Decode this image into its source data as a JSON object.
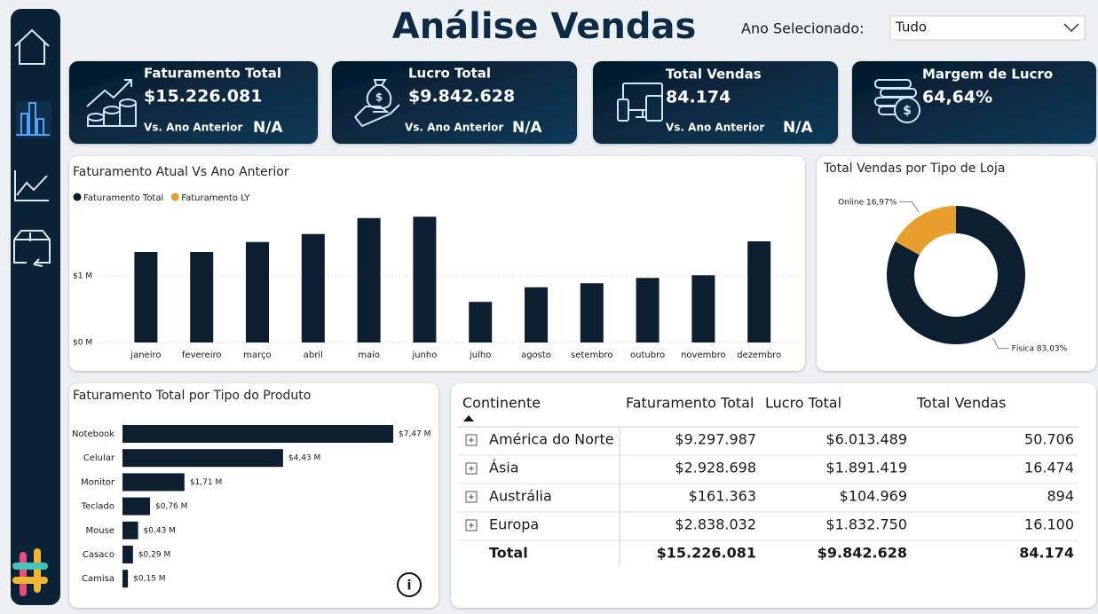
{
  "header": {
    "title": "Análise Vendas",
    "filter_label": "Ano Selecionado:",
    "filter_value": "Tudo"
  },
  "kpis": [
    {
      "title": "Faturamento Total",
      "value": "$15.226.081",
      "compare_label": "Vs. Ano Anterior",
      "compare_value": "N/A"
    },
    {
      "title": "Lucro Total",
      "value": "$9.842.628",
      "compare_label": "Vs. Ano Anterior",
      "compare_value": "N/A"
    },
    {
      "title": "Total Vendas",
      "value": "84.174",
      "compare_label": "Vs. Ano Anterior",
      "compare_value": "N/A"
    },
    {
      "title": "Margem de Lucro",
      "value": "64,64%"
    }
  ],
  "chart_data": [
    {
      "type": "bar",
      "title": "Faturamento Atual Vs Ano Anterior",
      "categories": [
        "janeiro",
        "fevereiro",
        "março",
        "abril",
        "maio",
        "junho",
        "julho",
        "agosto",
        "setembro",
        "outubro",
        "novembro",
        "dezembro"
      ],
      "series": [
        {
          "name": "Faturamento Total",
          "color": "#0b1f30",
          "values": [
            1360000,
            1360000,
            1510000,
            1630000,
            1870000,
            1890000,
            610000,
            830000,
            890000,
            970000,
            1010000,
            1520000
          ]
        },
        {
          "name": "Faturamento LY",
          "color": "#e89e2c",
          "values": [
            null,
            null,
            null,
            null,
            null,
            null,
            null,
            null,
            null,
            null,
            null,
            null
          ]
        }
      ],
      "ylim": [
        0,
        2000000
      ],
      "yticks": [
        {
          "value": 0,
          "label": "$0 M"
        },
        {
          "value": 1000000,
          "label": "$1 M"
        }
      ],
      "grid": true
    },
    {
      "type": "pie",
      "title": "Total Vendas por Tipo de Loja",
      "categories": [
        "Física",
        "Online"
      ],
      "values": [
        83.03,
        16.97
      ],
      "value_labels": [
        "83,03%",
        "16,97%"
      ],
      "colors": [
        "#0b1f30",
        "#e89e2c"
      ]
    },
    {
      "type": "hbar",
      "title": "Faturamento Total por Tipo do Produto",
      "categories": [
        "Notebook",
        "Celular",
        "Monitor",
        "Teclado",
        "Mouse",
        "Casaco",
        "Camisa"
      ],
      "values": [
        7.47,
        4.43,
        1.71,
        0.76,
        0.43,
        0.29,
        0.15
      ],
      "value_labels": [
        "$7,47 M",
        "$4,43 M",
        "$1,71 M",
        "$0,76 M",
        "$0,43 M",
        "$0,29 M",
        "$0,15 M"
      ],
      "color": "#0b1f30"
    }
  ],
  "table": {
    "columns": [
      "Continente",
      "Faturamento Total",
      "Lucro Total",
      "Total Vendas"
    ],
    "rows": [
      [
        "América do Norte",
        "$9.297.987",
        "$6.013.489",
        "50.706"
      ],
      [
        "Ásia",
        "$2.928.698",
        "$1.891.419",
        "16.474"
      ],
      [
        "Austrália",
        "$161.363",
        "$104.969",
        "894"
      ],
      [
        "Europa",
        "$2.838.032",
        "$1.832.750",
        "16.100"
      ]
    ],
    "total": [
      "Total",
      "$15.226.081",
      "$9.842.628",
      "84.174"
    ]
  }
}
